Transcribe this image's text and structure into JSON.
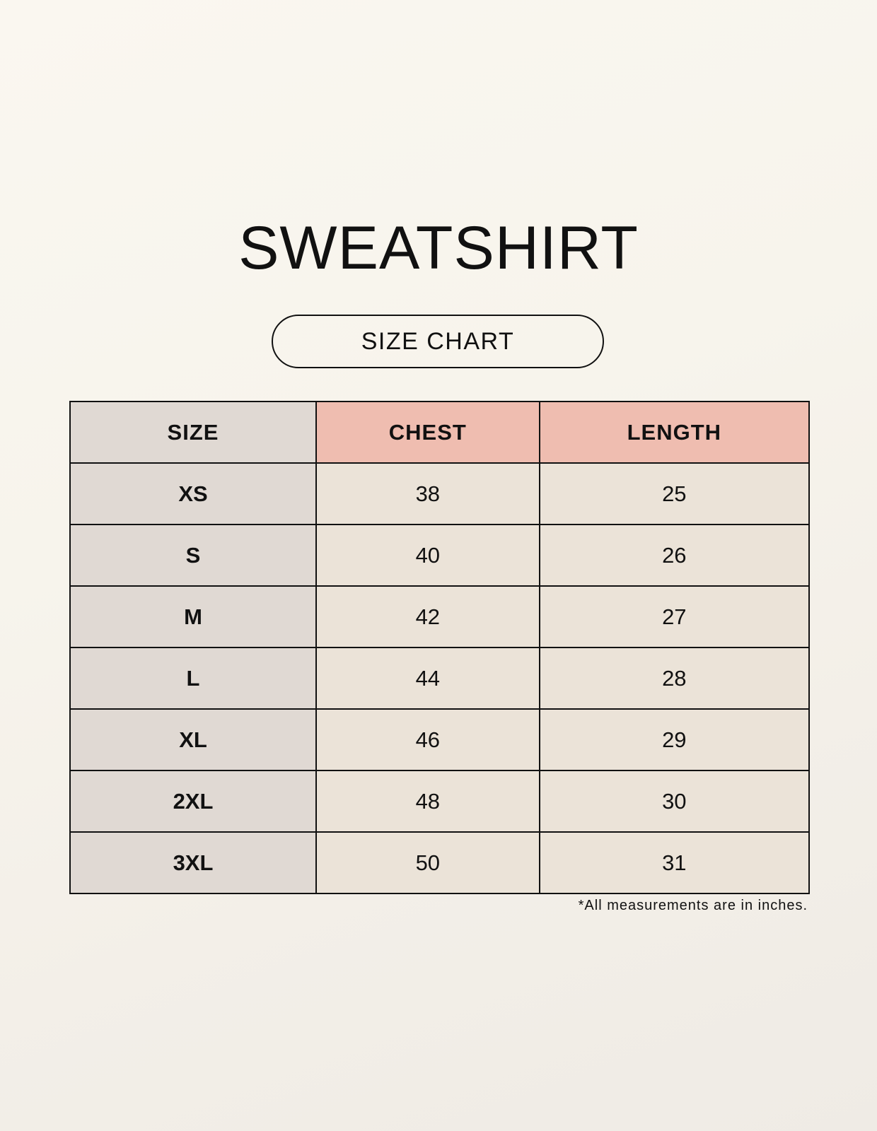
{
  "title": "SWEATSHIRT",
  "subtitle": "SIZE CHART",
  "table": {
    "headers": [
      "SIZE",
      "CHEST",
      "LENGTH"
    ],
    "rows": [
      [
        "XS",
        "38",
        "25"
      ],
      [
        "S",
        "40",
        "26"
      ],
      [
        "M",
        "42",
        "27"
      ],
      [
        "L",
        "44",
        "28"
      ],
      [
        "XL",
        "46",
        "29"
      ],
      [
        "2XL",
        "48",
        "30"
      ],
      [
        "3XL",
        "50",
        "31"
      ]
    ]
  },
  "note": "*All measurements are in inches.",
  "colors": {
    "background": "#f8f5ee",
    "size_column": "#e0d9d3",
    "header_accent": "#efbdb0",
    "cell": "#ebe3d8"
  }
}
